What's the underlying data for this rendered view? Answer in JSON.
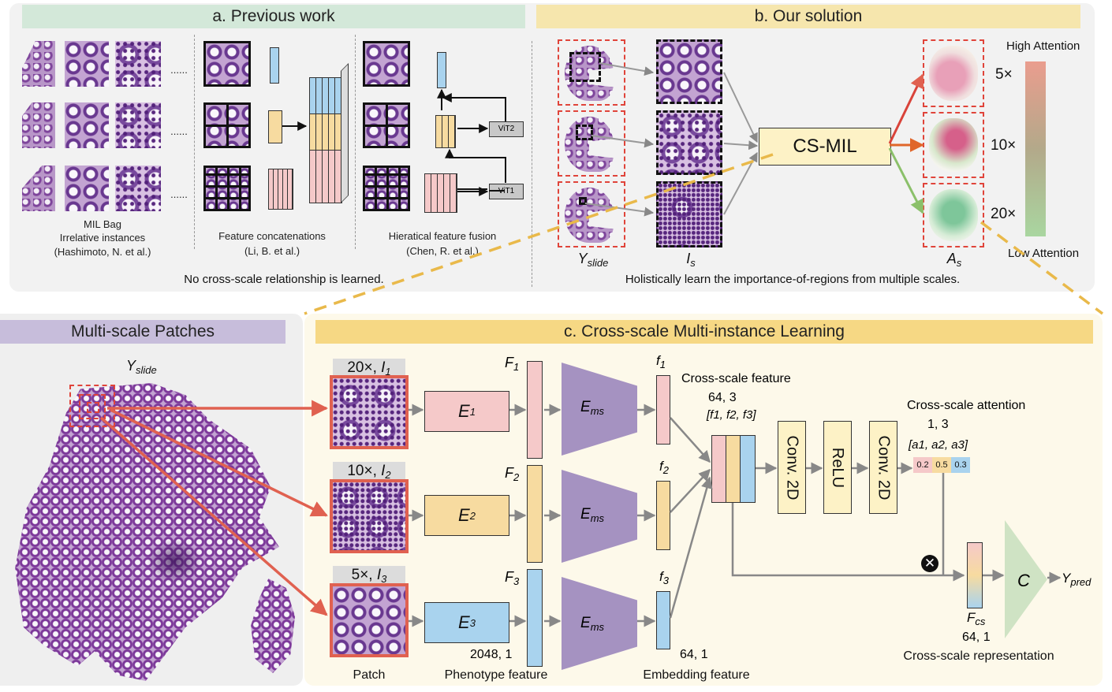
{
  "panel_a": {
    "header": "a. Previous work",
    "col1_line1": "MIL Bag",
    "col1_line2": "Irrelative instances",
    "col1_line3": "(Hashimoto, N. et al.)",
    "col2_line1": "Feature concatenations",
    "col2_line2": "(Li, B. et al.)",
    "col3_line1": "Hieratical feature fusion",
    "col3_line2": "(Chen, R. et al.)",
    "dots": "......",
    "vit2": "ViT2",
    "vit1": "ViT1",
    "footer": "No cross-scale relationship is learned."
  },
  "panel_b": {
    "header": "b. Our solution",
    "csmil": "CS-MIL",
    "y_slide": "Y",
    "y_slide_sub": "slide",
    "i_s": "I",
    "i_s_sub": "s",
    "a_s": "A",
    "a_s_sub": "s",
    "scale_5": "5×",
    "scale_10": "10×",
    "scale_20": "20×",
    "high_attention": "High Attention",
    "low_attention": "Low Attention",
    "footer": "Holistically learn the importance-of-regions  from multiple scales."
  },
  "panel_left": {
    "header": "Multi-scale Patches",
    "y_slide": "Y",
    "y_slide_sub": "slide"
  },
  "panel_c": {
    "header": "c. Cross-scale Multi-instance Learning",
    "tag_20": "20×, ",
    "tag_20_i": "I",
    "tag_20_sub": "1",
    "tag_10": "10×, ",
    "tag_10_i": "I",
    "tag_10_sub": "2",
    "tag_5": "5×, ",
    "tag_5_i": "I",
    "tag_5_sub": "3",
    "e1": "E",
    "e1_sub": "1",
    "e2": "E",
    "e2_sub": "2",
    "e3": "E",
    "e3_sub": "3",
    "ems": "E",
    "ems_sub": "ms",
    "F1": "F",
    "F1_sub": "1",
    "F2": "F",
    "F2_sub": "2",
    "F3": "F",
    "F3_sub": "3",
    "f1": "f",
    "f1_sub": "1",
    "f2": "f",
    "f2_sub": "2",
    "f3": "f",
    "f3_sub": "3",
    "dim_2048": "2048, 1",
    "dim_64_emb": "64, 1",
    "cross_scale_feature": "Cross-scale feature",
    "dim_64_3": "64, 3",
    "feat_list": "[f1, f2, f3]",
    "conv1": "Conv. 2D",
    "relu": "ReLU",
    "conv2": "Conv. 2D",
    "cross_scale_attention": "Cross-scale attention",
    "dim_1_3": "1, 3",
    "att_list": "[a1, a2, a3]",
    "att_values": [
      "0.2",
      "0.5",
      "0.3"
    ],
    "fcs": "F",
    "fcs_sub": "cs",
    "dim_64_1_cs": "64, 1",
    "classifier": "C",
    "y_pred": "Y",
    "y_pred_sub": "pred",
    "patch_label": "Patch",
    "phenotype_label": "Phenotype feature",
    "embedding_label": "Embedding feature",
    "cs_representation": "Cross-scale representation"
  },
  "colors": {
    "panel_a_header": "#d3e8d9",
    "panel_b_header": "#f6e6ad",
    "panel_c_header": "#f6d884",
    "panel_left_header": "#c7bddb",
    "scale1": "#f5c9c9",
    "scale2": "#f7dba0",
    "scale3": "#a9d3ee",
    "ems": "#a592c1",
    "conv": "#fdf2c6",
    "arrow_red": "#e06150",
    "classifier": "#cfe3c4"
  }
}
